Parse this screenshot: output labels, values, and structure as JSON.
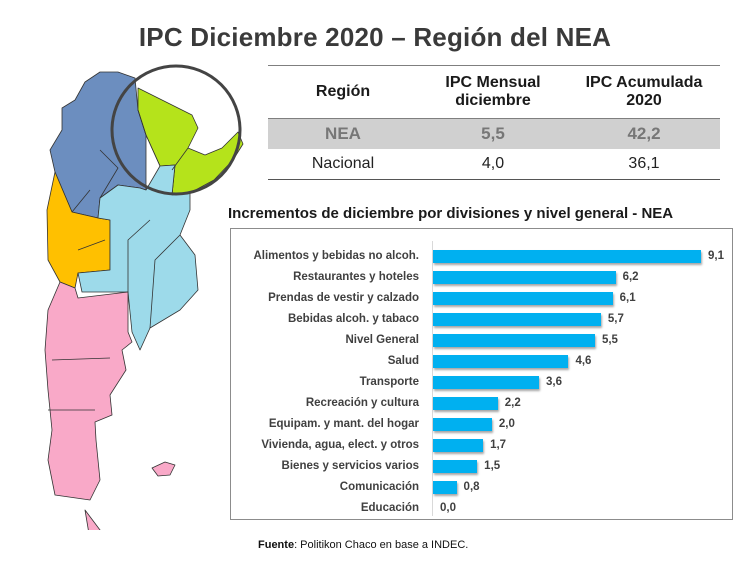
{
  "title": "IPC Diciembre 2020 – Región del NEA",
  "map": {
    "description": "Mapa de Argentina por regiones",
    "regions": [
      {
        "name": "NOA",
        "color": "#6c8ebf"
      },
      {
        "name": "NEA",
        "color": "#b5e31b"
      },
      {
        "name": "Cuyo",
        "color": "#ffc000"
      },
      {
        "name": "Pampeana / GBA",
        "color": "#9ddaea"
      },
      {
        "name": "Patagonia",
        "color": "#f9a9c8"
      }
    ],
    "highlight_circle": "NEA"
  },
  "table": {
    "headers": [
      "Región",
      "IPC Mensual diciembre",
      "IPC Acumulada 2020"
    ],
    "header_lines": [
      [
        "Región"
      ],
      [
        "IPC Mensual",
        "diciembre"
      ],
      [
        "IPC Acumulada",
        "2020"
      ]
    ],
    "rows": [
      {
        "region": "NEA",
        "mensual": "5,5",
        "acumulada": "42,2",
        "highlighted": true
      },
      {
        "region": "Nacional",
        "mensual": "4,0",
        "acumulada": "36,1",
        "highlighted": false
      }
    ]
  },
  "subtitle": "Incrementos de diciembre por divisiones y nivel general - NEA",
  "chart_data": {
    "type": "bar",
    "orientation": "horizontal",
    "title": "Incrementos de diciembre por divisiones y nivel general - NEA",
    "xlabel": "",
    "ylabel": "",
    "grid": false,
    "legend": null,
    "bar_color": "#00b0f0",
    "categories": [
      "Alimentos y bebidas no alcoh.",
      "Restaurantes y hoteles",
      "Prendas de vestir y calzado",
      "Bebidas alcoh. y tabaco",
      "Nivel General",
      "Salud",
      "Transporte",
      "Recreación y cultura",
      "Equipam. y mant. del hogar",
      "Vivienda, agua, elect. y otros",
      "Bienes y servicios varios",
      "Comunicación",
      "Educación"
    ],
    "values": [
      9.1,
      6.2,
      6.1,
      5.7,
      5.5,
      4.6,
      3.6,
      2.2,
      2.0,
      1.7,
      1.5,
      0.8,
      0.0
    ],
    "value_labels": [
      "9,1",
      "6,2",
      "6,1",
      "5,7",
      "5,5",
      "4,6",
      "3,6",
      "2,2",
      "2,0",
      "1,7",
      "1,5",
      "0,8",
      "0,0"
    ],
    "xlim": [
      0,
      9.1
    ]
  },
  "source": {
    "label": "Fuente",
    "text": ": Politikon Chaco en base a INDEC."
  }
}
